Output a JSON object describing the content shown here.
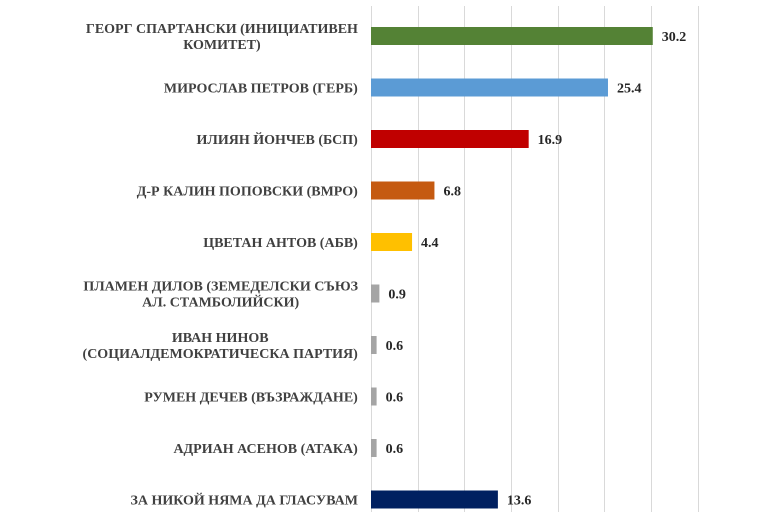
{
  "chart_data": {
    "type": "bar",
    "orientation": "horizontal",
    "xlim": [
      0,
      35
    ],
    "grid": true,
    "categories": [
      [
        "ГЕОРГ СПАРТАНСКИ (ИНИЦИАТИВЕН",
        "КОМИТЕТ)"
      ],
      [
        "МИРОСЛАВ ПЕТРОВ (ГЕРБ)"
      ],
      [
        "ИЛИЯН ЙОНЧЕВ (БСП)"
      ],
      [
        "Д-Р КАЛИН ПОПОВСКИ (ВМРО)"
      ],
      [
        "ЦВЕТАН АНТОВ (АБВ)"
      ],
      [
        "ПЛАМЕН ДИЛОВ (ЗЕМЕДЕЛСКИ СЪЮЗ",
        "АЛ. СТАМБОЛИЙСКИ)"
      ],
      [
        "ИВАН НИНОВ",
        "(СОЦИАЛДЕМОКРАТИЧЕСКА ПАРТИЯ)"
      ],
      [
        "РУМЕН ДЕЧЕВ (ВЪЗРАЖДАНЕ)"
      ],
      [
        "АДРИАН АСЕНОВ (АТАКА)"
      ],
      [
        "ЗА НИКОЙ НЯМА ДА ГЛАСУВАМ"
      ]
    ],
    "values": [
      30.2,
      25.4,
      16.9,
      6.8,
      4.4,
      0.9,
      0.6,
      0.6,
      0.6,
      13.6
    ],
    "value_labels": [
      "30.2",
      "25.4",
      "16.9",
      "6.8",
      "4.4",
      "0.9",
      "0.6",
      "0.6",
      "0.6",
      "13.6"
    ],
    "colors": [
      "#548235",
      "#5b9bd5",
      "#c00000",
      "#c55a11",
      "#ffc000",
      "#a5a5a5",
      "#a5a5a5",
      "#a5a5a5",
      "#a5a5a5",
      "#002060"
    ]
  }
}
